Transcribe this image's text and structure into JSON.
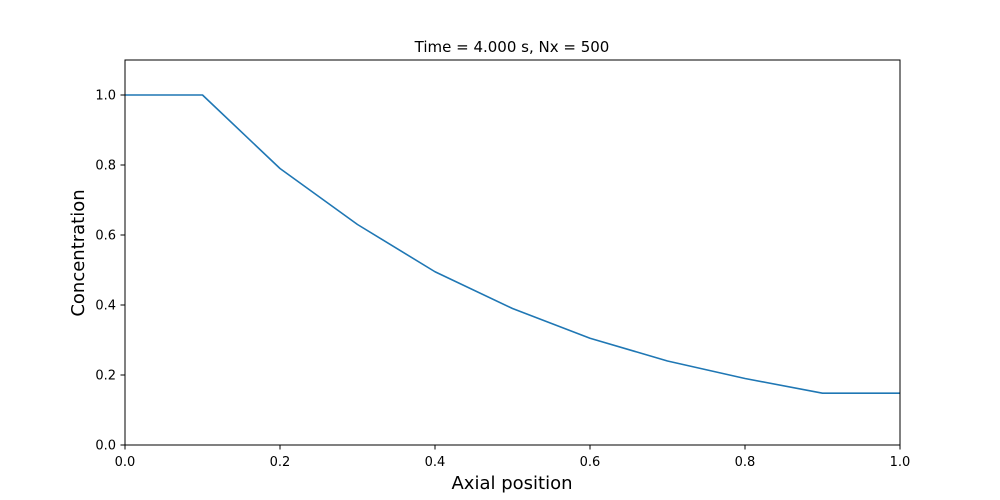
{
  "chart_data": {
    "type": "line",
    "title": "Time = 4.000 s, Nx = 500",
    "xlabel": "Axial position",
    "ylabel": "Concentration",
    "xlim": [
      0.0,
      1.0
    ],
    "ylim": [
      0.0,
      1.1
    ],
    "xticks": [
      "0.0",
      "0.2",
      "0.4",
      "0.6",
      "0.8",
      "1.0"
    ],
    "yticks": [
      "0.0",
      "0.2",
      "0.4",
      "0.6",
      "0.8",
      "1.0"
    ],
    "grid": false,
    "line_color": "#1f77b4",
    "series": [
      {
        "x": [
          0.0,
          0.1,
          0.2,
          0.3,
          0.4,
          0.5,
          0.6,
          0.7,
          0.8,
          0.9,
          1.0
        ],
        "y": [
          1.0,
          1.0,
          0.79,
          0.63,
          0.495,
          0.39,
          0.305,
          0.24,
          0.19,
          0.148,
          0.148
        ]
      }
    ]
  }
}
